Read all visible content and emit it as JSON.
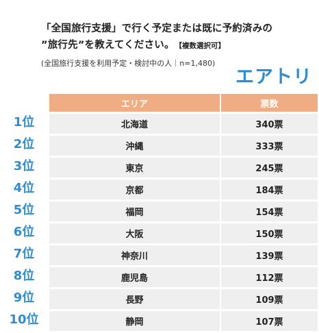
{
  "header": {
    "title_line1": "「全国旅行支援」で行く予定または既に予約済みの",
    "title_line2": "”旅行先”を教えてください。",
    "title_tag": "【複数選択可】",
    "subtitle": "(全国旅行支援を利用予定・検討中の人｜n=1,480)",
    "logo": "エアトリ"
  },
  "chart_data": {
    "type": "table",
    "columns": [
      "エリア",
      "票数"
    ],
    "ranks": [
      "1位",
      "2位",
      "3位",
      "4位",
      "5位",
      "6位",
      "7位",
      "8位",
      "9位",
      "10位"
    ],
    "rows": [
      {
        "area": "北海道",
        "votes": "340票"
      },
      {
        "area": "沖縄",
        "votes": "333票"
      },
      {
        "area": "東京",
        "votes": "245票"
      },
      {
        "area": "京都",
        "votes": "184票"
      },
      {
        "area": "福岡",
        "votes": "154票"
      },
      {
        "area": "大阪",
        "votes": "150票"
      },
      {
        "area": "神奈川",
        "votes": "139票"
      },
      {
        "area": "鹿児島",
        "votes": "112票"
      },
      {
        "area": "長野",
        "votes": "109票"
      },
      {
        "area": "静岡",
        "votes": "107票"
      }
    ],
    "colors": {
      "header_bg": "#f0ac82",
      "row_bg": "#efefef",
      "rank_text": "#2e8dd2",
      "logo": "#2e8dd2"
    }
  }
}
